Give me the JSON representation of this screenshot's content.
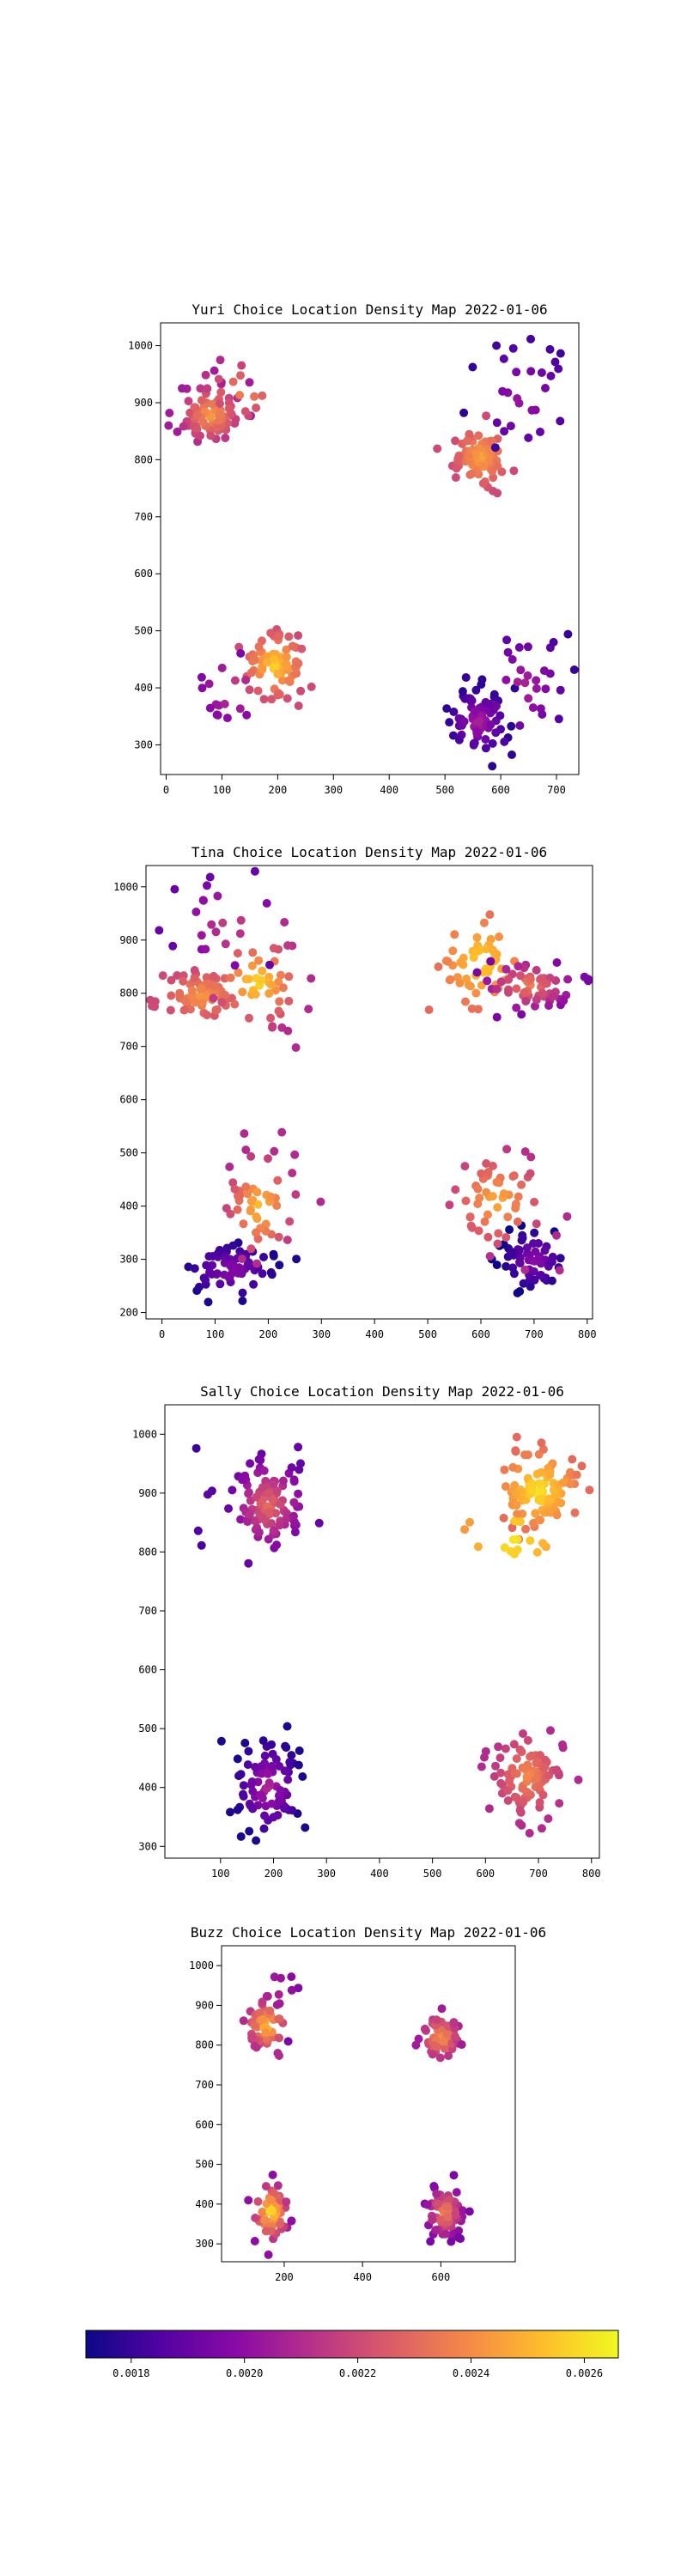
{
  "colormap": {
    "name": "plasma",
    "ticks": [
      "0.0018",
      "0.0020",
      "0.0022",
      "0.0024",
      "0.0026"
    ],
    "tick_values": [
      0.0018,
      0.002,
      0.0022,
      0.0024,
      0.0026
    ],
    "range": [
      0.00172,
      0.00266
    ],
    "stops": [
      "#0d0887",
      "#5302a3",
      "#8b0aa5",
      "#b83289",
      "#db5c68",
      "#f48849",
      "#febd2a",
      "#f0f921"
    ]
  },
  "chart_data": [
    {
      "type": "scatter",
      "title": "Yuri Choice Location Density Map 2022-01-06",
      "xlim": [
        -10,
        740
      ],
      "ylim": [
        248,
        1040
      ],
      "xticks": [
        0,
        100,
        200,
        300,
        400,
        500,
        600,
        700
      ],
      "yticks": [
        300,
        400,
        500,
        600,
        700,
        800,
        900,
        1000
      ],
      "clusters": [
        {
          "center": [
            80,
            880
          ],
          "spread": [
            30,
            28
          ],
          "n": 80,
          "lo": 0.00205,
          "hi": 0.00246,
          "seed": 11
        },
        {
          "center": [
            140,
            920
          ],
          "spread": [
            38,
            28
          ],
          "n": 14,
          "lo": 0.0021,
          "hi": 0.0024,
          "seed": 12
        },
        {
          "center": [
            195,
            440
          ],
          "spread": [
            28,
            30
          ],
          "n": 80,
          "lo": 0.0022,
          "hi": 0.00258,
          "seed": 13
        },
        {
          "center": [
            120,
            400
          ],
          "spread": [
            35,
            35
          ],
          "n": 16,
          "lo": 0.0019,
          "hi": 0.0022,
          "seed": 14
        },
        {
          "center": [
            565,
            805
          ],
          "spread": [
            25,
            28
          ],
          "n": 75,
          "lo": 0.0022,
          "hi": 0.00248,
          "seed": 15
        },
        {
          "center": [
            640,
            910
          ],
          "spread": [
            50,
            55
          ],
          "n": 28,
          "lo": 0.00178,
          "hi": 0.00205,
          "seed": 16
        },
        {
          "center": [
            560,
            340
          ],
          "spread": [
            25,
            28
          ],
          "n": 75,
          "lo": 0.00178,
          "hi": 0.00208,
          "seed": 17
        },
        {
          "center": [
            640,
            400
          ],
          "spread": [
            45,
            55
          ],
          "n": 30,
          "lo": 0.0018,
          "hi": 0.0021,
          "seed": 18
        }
      ]
    },
    {
      "type": "scatter",
      "title": "Tina Choice Location Density Map 2022-01-06",
      "xlim": [
        -30,
        810
      ],
      "ylim": [
        188,
        1040
      ],
      "xticks": [
        0,
        100,
        200,
        300,
        400,
        500,
        600,
        700,
        800
      ],
      "yticks": [
        200,
        300,
        400,
        500,
        600,
        700,
        800,
        900,
        1000
      ],
      "clusters": [
        {
          "center": [
            75,
            795
          ],
          "spread": [
            35,
            22
          ],
          "n": 70,
          "lo": 0.0022,
          "hi": 0.00245,
          "seed": 21
        },
        {
          "center": [
            180,
            820
          ],
          "spread": [
            45,
            45
          ],
          "n": 50,
          "lo": 0.0021,
          "hi": 0.0026,
          "seed": 22
        },
        {
          "center": [
            130,
            930
          ],
          "spread": [
            50,
            45
          ],
          "n": 20,
          "lo": 0.0019,
          "hi": 0.0022,
          "seed": 23
        },
        {
          "center": [
            130,
            280
          ],
          "spread": [
            40,
            25
          ],
          "n": 70,
          "lo": 0.00175,
          "hi": 0.002,
          "seed": 24
        },
        {
          "center": [
            185,
            400
          ],
          "spread": [
            35,
            50
          ],
          "n": 50,
          "lo": 0.0021,
          "hi": 0.00255,
          "seed": 25
        },
        {
          "center": [
            600,
            860
          ],
          "spread": [
            40,
            45
          ],
          "n": 55,
          "lo": 0.0023,
          "hi": 0.00258,
          "seed": 26
        },
        {
          "center": [
            690,
            815
          ],
          "spread": [
            45,
            25
          ],
          "n": 60,
          "lo": 0.00195,
          "hi": 0.00238,
          "seed": 27
        },
        {
          "center": [
            700,
            300
          ],
          "spread": [
            30,
            30
          ],
          "n": 60,
          "lo": 0.00172,
          "hi": 0.002,
          "seed": 28
        },
        {
          "center": [
            630,
            410
          ],
          "spread": [
            50,
            50
          ],
          "n": 55,
          "lo": 0.0021,
          "hi": 0.0025,
          "seed": 29
        }
      ]
    },
    {
      "type": "scatter",
      "title": "Sally Choice Location Density Map 2022-01-06",
      "xlim": [
        -5,
        815
      ],
      "ylim": [
        280,
        1050
      ],
      "xticks": [
        100,
        200,
        300,
        400,
        500,
        600,
        700,
        800
      ],
      "yticks": [
        300,
        400,
        500,
        600,
        700,
        800,
        900,
        1000
      ],
      "clusters": [
        {
          "center": [
            190,
            880
          ],
          "spread": [
            35,
            40
          ],
          "n": 110,
          "lo": 0.0019,
          "hi": 0.00232,
          "seed": 31
        },
        {
          "center": [
            70,
            880
          ],
          "spread": [
            20,
            50
          ],
          "n": 5,
          "lo": 0.0018,
          "hi": 0.0019,
          "seed": 32
        },
        {
          "center": [
            190,
            400
          ],
          "spread": [
            30,
            40
          ],
          "n": 90,
          "lo": 0.00175,
          "hi": 0.0021,
          "seed": 33
        },
        {
          "center": [
            700,
            905
          ],
          "spread": [
            40,
            35
          ],
          "n": 110,
          "lo": 0.0023,
          "hi": 0.00262,
          "seed": 34
        },
        {
          "center": [
            650,
            820
          ],
          "spread": [
            50,
            45
          ],
          "n": 15,
          "lo": 0.0024,
          "hi": 0.00262,
          "seed": 35
        },
        {
          "center": [
            680,
            420
          ],
          "spread": [
            35,
            40
          ],
          "n": 95,
          "lo": 0.0021,
          "hi": 0.0024,
          "seed": 36
        }
      ]
    },
    {
      "type": "scatter",
      "title": "Buzz Choice Location Density Map 2022-01-06",
      "xlim": [
        40,
        790
      ],
      "ylim": [
        255,
        1050
      ],
      "xticks": [
        200,
        400,
        600
      ],
      "yticks": [
        300,
        400,
        500,
        600,
        700,
        800,
        900,
        1000
      ],
      "clusters": [
        {
          "center": [
            155,
            850
          ],
          "spread": [
            25,
            30
          ],
          "n": 60,
          "lo": 0.0021,
          "hi": 0.00255,
          "seed": 41
        },
        {
          "center": [
            170,
            930
          ],
          "spread": [
            35,
            45
          ],
          "n": 10,
          "lo": 0.00195,
          "hi": 0.0021,
          "seed": 42
        },
        {
          "center": [
            165,
            380
          ],
          "spread": [
            25,
            40
          ],
          "n": 60,
          "lo": 0.002,
          "hi": 0.00262,
          "seed": 43
        },
        {
          "center": [
            600,
            820
          ],
          "spread": [
            25,
            30
          ],
          "n": 70,
          "lo": 0.00205,
          "hi": 0.00245,
          "seed": 44
        },
        {
          "center": [
            610,
            380
          ],
          "spread": [
            25,
            35
          ],
          "n": 70,
          "lo": 0.00195,
          "hi": 0.0024,
          "seed": 45
        }
      ]
    }
  ]
}
